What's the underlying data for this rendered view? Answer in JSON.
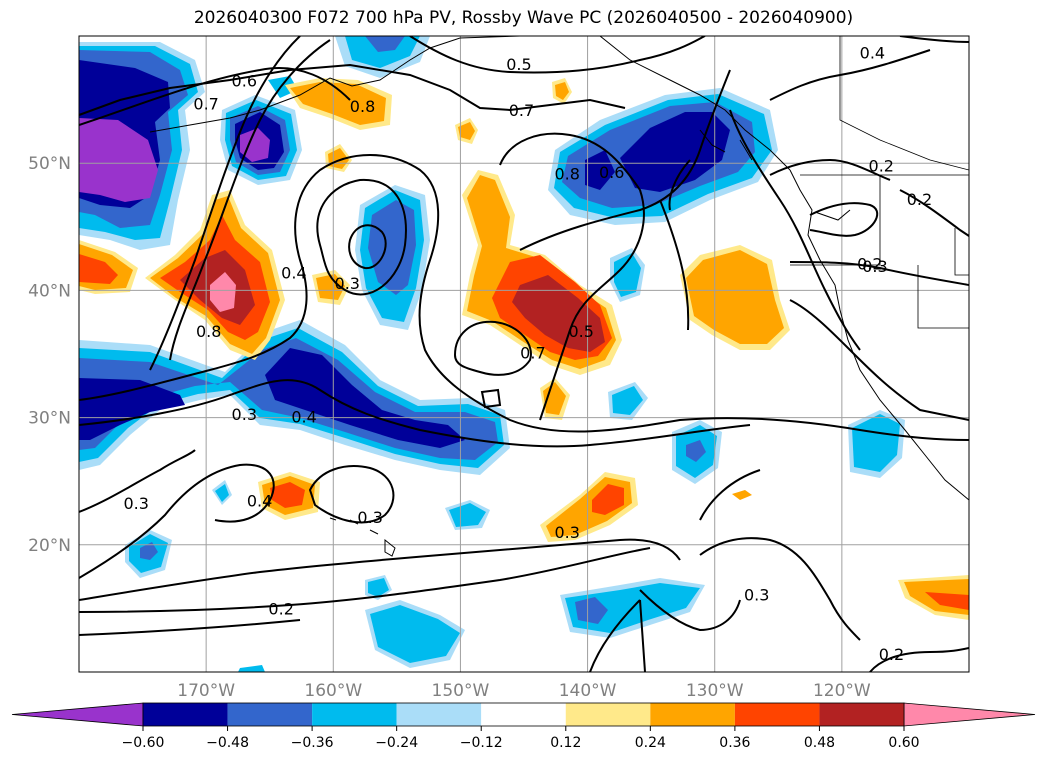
{
  "title": "2026040300 F072 700 hPa PV, Rossby Wave PC (2026040500 - 2026040900)",
  "map": {
    "lon_range": [
      -180,
      -110
    ],
    "lat_range": [
      10,
      60
    ],
    "lat_ticks": [
      {
        "value": 50,
        "label": "50°N"
      },
      {
        "value": 40,
        "label": "40°N"
      },
      {
        "value": 30,
        "label": "30°N"
      },
      {
        "value": 20,
        "label": "20°N"
      }
    ],
    "lon_ticks": [
      {
        "value": -170,
        "label": "170°W"
      },
      {
        "value": -160,
        "label": "160°W"
      },
      {
        "value": -150,
        "label": "150°W"
      },
      {
        "value": -140,
        "label": "140°W"
      },
      {
        "value": -130,
        "label": "130°W"
      },
      {
        "value": -120,
        "label": "120°W"
      }
    ],
    "grid": true,
    "gridline_color": "#a0a0a0",
    "contour_color": "#000000",
    "contour_labels": [
      {
        "text": "0.7",
        "lon": -170,
        "lat": 54.7
      },
      {
        "text": "0.6",
        "lon": -167,
        "lat": 56.5
      },
      {
        "text": "0.8",
        "lon": -157.7,
        "lat": 54.5
      },
      {
        "text": "0.5",
        "lon": -145.4,
        "lat": 57.8
      },
      {
        "text": "0.7",
        "lon": -145.2,
        "lat": 54.2
      },
      {
        "text": "0.4",
        "lon": -117.6,
        "lat": 58.7
      },
      {
        "text": "0.2",
        "lon": -116.9,
        "lat": 49.8
      },
      {
        "text": "0.2",
        "lon": -113.9,
        "lat": 47.2
      },
      {
        "text": "0.3",
        "lon": -117.4,
        "lat": 41.9
      },
      {
        "text": "0.2",
        "lon": -117.8,
        "lat": 42.1
      },
      {
        "text": "0.8",
        "lon": -141.6,
        "lat": 49.2
      },
      {
        "text": "0.6",
        "lon": -138.1,
        "lat": 49.3
      },
      {
        "text": "0.4",
        "lon": -163.1,
        "lat": 41.4
      },
      {
        "text": "0.3",
        "lon": -158.9,
        "lat": 40.6
      },
      {
        "text": "0.8",
        "lon": -169.8,
        "lat": 36.8
      },
      {
        "text": "0.5",
        "lon": -140.5,
        "lat": 36.8
      },
      {
        "text": "0.7",
        "lon": -144.3,
        "lat": 35.1
      },
      {
        "text": "0.3",
        "lon": -167,
        "lat": 30.3
      },
      {
        "text": "0.4",
        "lon": -162.3,
        "lat": 30.1
      },
      {
        "text": "0.3",
        "lon": -175.5,
        "lat": 23.3
      },
      {
        "text": "0.4",
        "lon": -165.8,
        "lat": 23.5
      },
      {
        "text": "0.3",
        "lon": -157.1,
        "lat": 22.2
      },
      {
        "text": "0.3",
        "lon": -141.6,
        "lat": 21.0
      },
      {
        "text": "0.3",
        "lon": -126.7,
        "lat": 16.1
      },
      {
        "text": "0.2",
        "lon": -164.1,
        "lat": 15.0
      },
      {
        "text": "0.2",
        "lon": -116.1,
        "lat": 11.4
      }
    ]
  },
  "colorbar": {
    "colors": [
      "#9933cc",
      "#000099",
      "#3366cc",
      "#00bbee",
      "#aaddf8",
      "#ffffff",
      "#ffe98a",
      "#ffa500",
      "#ff4400",
      "#b22222",
      "#ff88aa"
    ],
    "tick_labels": [
      "−0.60",
      "−0.48",
      "−0.36",
      "−0.24",
      "−0.12",
      "0.12",
      "0.24",
      "0.36",
      "0.48",
      "0.60"
    ]
  }
}
